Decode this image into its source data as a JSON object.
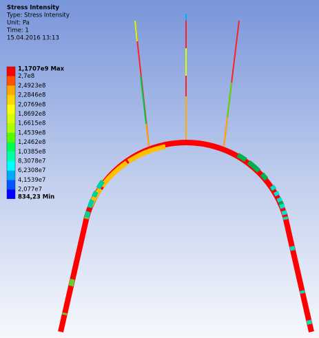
{
  "header": {
    "title": "Stress Intensity",
    "type": "Type: Stress Intensity",
    "unit": "Unit: Pa",
    "time": "Time: 1",
    "date": "15.04.2016 13:13"
  },
  "legend": {
    "labels": [
      "1,1707e9 Max",
      "2,7e8",
      "2,4923e8",
      "2,2846e8",
      "2,0769e8",
      "1,8692e8",
      "1,6615e8",
      "1,4539e8",
      "1,2462e8",
      "1,0385e8",
      "8,3078e7",
      "6,2308e7",
      "4,1539e7",
      "2,077e7",
      "834,23 Min"
    ],
    "colors": [
      "#ff0000",
      "#ff5500",
      "#ffaa00",
      "#ffd500",
      "#ffff00",
      "#d5ff00",
      "#aaff00",
      "#55ff00",
      "#00ff55",
      "#00ffaa",
      "#00ffff",
      "#00aaff",
      "#0055ff",
      "#0000ff"
    ]
  }
}
